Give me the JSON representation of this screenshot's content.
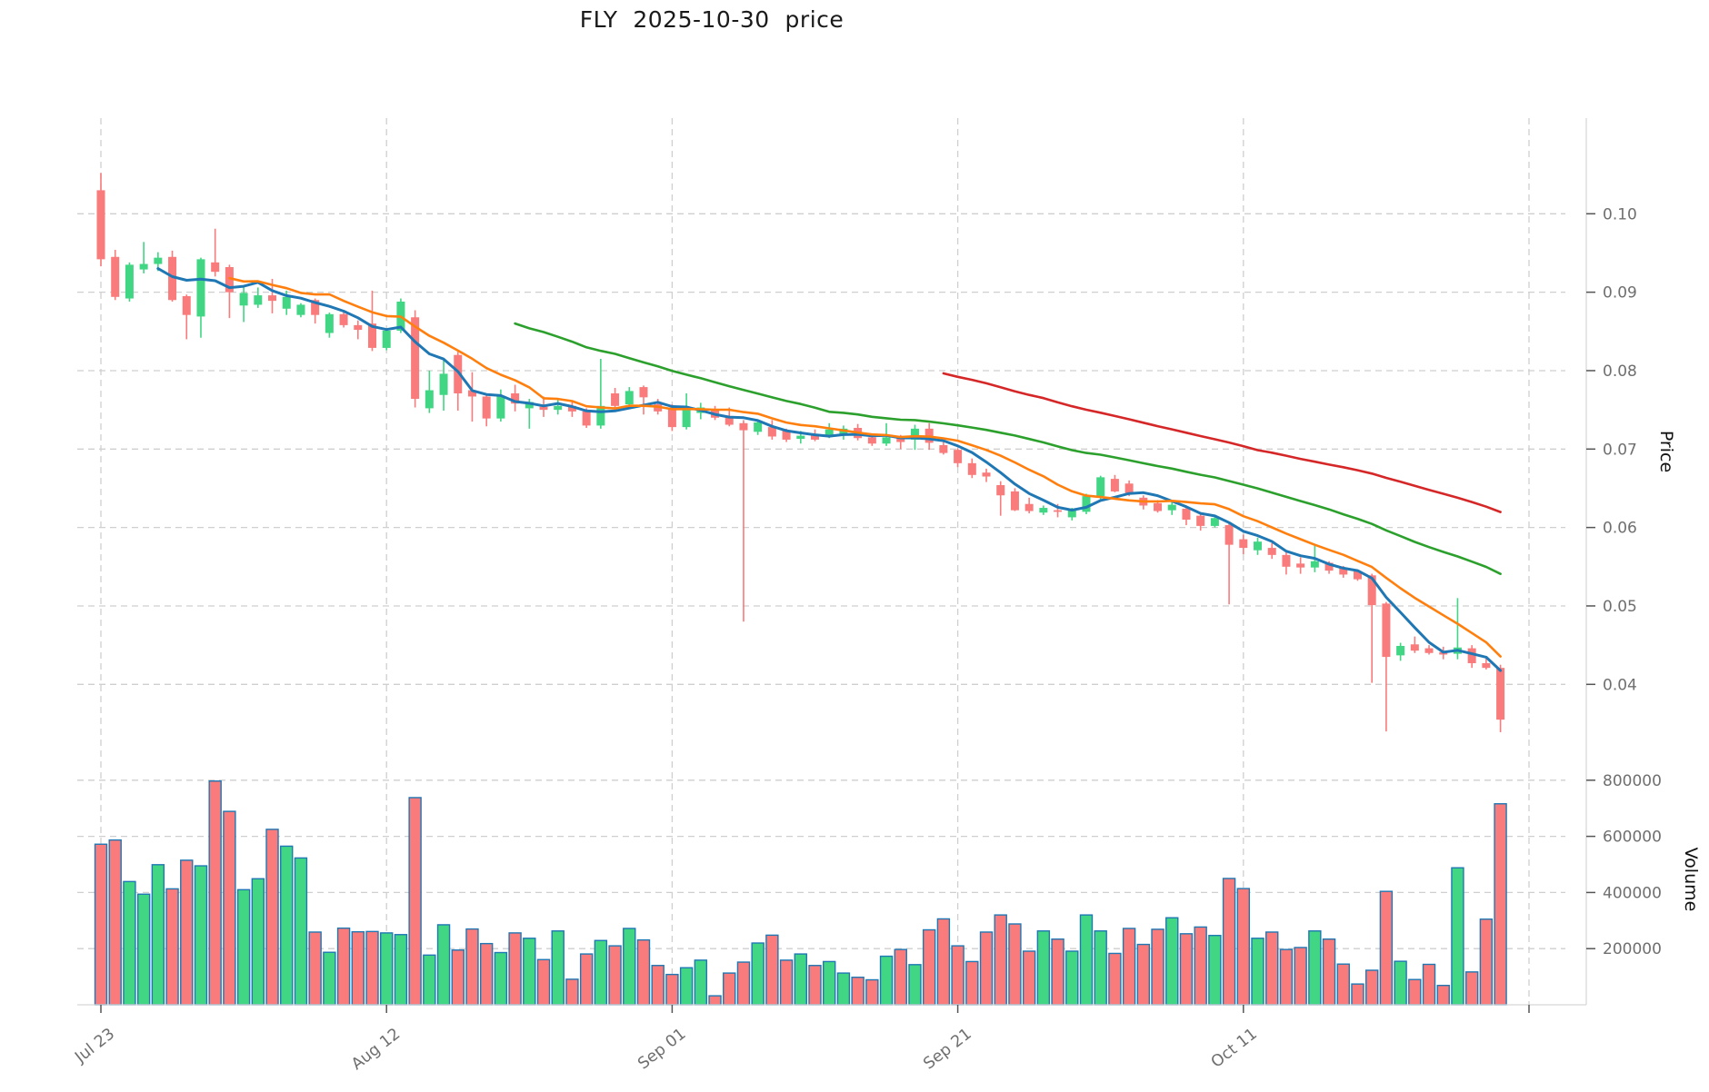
{
  "title": "FLY  2025-10-30  price",
  "axes": {
    "price_axis_label": "Price",
    "volume_axis_label": "Volume",
    "price_ticks": [
      {
        "value": 0.1,
        "label": "0.10"
      },
      {
        "value": 0.09,
        "label": "0.09"
      },
      {
        "value": 0.08,
        "label": "0.08"
      },
      {
        "value": 0.07,
        "label": "0.07"
      },
      {
        "value": 0.06,
        "label": "0.06"
      },
      {
        "value": 0.05,
        "label": "0.05"
      },
      {
        "value": 0.04,
        "label": "0.04"
      }
    ],
    "volume_ticks": [
      {
        "value": 800000,
        "label": "800000"
      },
      {
        "value": 600000,
        "label": "600000"
      },
      {
        "value": 400000,
        "label": "400000"
      },
      {
        "value": 200000,
        "label": "200000"
      }
    ],
    "x_ticks": [
      {
        "day": 0,
        "label": "Jul 23"
      },
      {
        "day": 20,
        "label": "Aug 12"
      },
      {
        "day": 40,
        "label": "Sep 01"
      },
      {
        "day": 60,
        "label": "Sep 21"
      },
      {
        "day": 80,
        "label": "Oct 11"
      },
      {
        "day": 100,
        "label": ""
      }
    ]
  },
  "chart_data": {
    "type": "candlestick+volume",
    "symbol": "FLY",
    "date_range": {
      "first_visible_tick": "Jul 23",
      "last_visible_tick": "Oct 11",
      "title_date": "2025-10-30"
    },
    "grid": true,
    "legend_position": "none",
    "price_ylim": [
      0.032,
      0.112
    ],
    "volume_ylim": [
      0,
      845000
    ],
    "open": [
      0.103,
      0.0945,
      0.0892,
      0.0929,
      0.0936,
      0.0945,
      0.0895,
      0.0869,
      0.0938,
      0.0932,
      0.0883,
      0.0884,
      0.0896,
      0.0879,
      0.0871,
      0.089,
      0.0848,
      0.0872,
      0.0858,
      0.086,
      0.0829,
      0.0851,
      0.0868,
      0.0752,
      0.0769,
      0.082,
      0.0775,
      0.0767,
      0.0739,
      0.0771,
      0.0752,
      0.0754,
      0.075,
      0.0755,
      0.0748,
      0.073,
      0.0771,
      0.0757,
      0.0779,
      0.0757,
      0.0753,
      0.0728,
      0.0746,
      0.0749,
      0.074,
      0.0733,
      0.0722,
      0.0728,
      0.0724,
      0.0713,
      0.0718,
      0.0717,
      0.0719,
      0.0727,
      0.0715,
      0.0707,
      0.0715,
      0.0712,
      0.0726,
      0.0705,
      0.0699,
      0.0682,
      0.067,
      0.0654,
      0.0646,
      0.063,
      0.0619,
      0.0622,
      0.0613,
      0.062,
      0.064,
      0.0662,
      0.0656,
      0.0638,
      0.0631,
      0.0622,
      0.0624,
      0.0615,
      0.0602,
      0.0603,
      0.0585,
      0.0571,
      0.0574,
      0.0565,
      0.0554,
      0.0549,
      0.0555,
      0.0549,
      0.0544,
      0.0539,
      0.0503,
      0.0437,
      0.0451,
      0.0446,
      0.0441,
      0.0439,
      0.0446,
      0.0427,
      0.0421
    ],
    "high": [
      0.1052,
      0.0954,
      0.0938,
      0.0964,
      0.0951,
      0.0953,
      0.0897,
      0.0944,
      0.0981,
      0.0935,
      0.0906,
      0.0906,
      0.0917,
      0.0902,
      0.0886,
      0.0892,
      0.0874,
      0.0876,
      0.0864,
      0.0902,
      0.0853,
      0.0892,
      0.0877,
      0.08,
      0.0815,
      0.0824,
      0.0798,
      0.077,
      0.0776,
      0.0782,
      0.0764,
      0.0767,
      0.0765,
      0.0762,
      0.0752,
      0.0815,
      0.0778,
      0.0779,
      0.0781,
      0.0764,
      0.0757,
      0.0771,
      0.0759,
      0.0755,
      0.0753,
      0.0737,
      0.0736,
      0.0737,
      0.0726,
      0.0723,
      0.0725,
      0.0733,
      0.073,
      0.0732,
      0.0718,
      0.0733,
      0.0718,
      0.0731,
      0.0733,
      0.0711,
      0.0701,
      0.0688,
      0.0675,
      0.0659,
      0.065,
      0.0638,
      0.0628,
      0.063,
      0.0625,
      0.0643,
      0.0666,
      0.0667,
      0.066,
      0.0641,
      0.0635,
      0.0634,
      0.0626,
      0.0617,
      0.0614,
      0.0606,
      0.0591,
      0.0587,
      0.058,
      0.0569,
      0.0562,
      0.0578,
      0.0557,
      0.0551,
      0.0546,
      0.0541,
      0.0505,
      0.0453,
      0.0461,
      0.045,
      0.0448,
      0.051,
      0.045,
      0.0433,
      0.0425
    ],
    "low": [
      0.0933,
      0.089,
      0.0888,
      0.0924,
      0.0927,
      0.0888,
      0.084,
      0.0842,
      0.092,
      0.0867,
      0.0862,
      0.088,
      0.0873,
      0.0871,
      0.0868,
      0.086,
      0.0842,
      0.0855,
      0.084,
      0.0825,
      0.0826,
      0.0848,
      0.0753,
      0.0746,
      0.0749,
      0.0749,
      0.0735,
      0.0729,
      0.0735,
      0.0748,
      0.0726,
      0.0741,
      0.0744,
      0.0741,
      0.0727,
      0.0726,
      0.0749,
      0.0752,
      0.0744,
      0.0744,
      0.0723,
      0.0725,
      0.0738,
      0.0737,
      0.0729,
      0.048,
      0.0718,
      0.0712,
      0.0709,
      0.0707,
      0.071,
      0.0714,
      0.0712,
      0.0711,
      0.0704,
      0.0704,
      0.07,
      0.0699,
      0.0699,
      0.0693,
      0.0677,
      0.0663,
      0.0658,
      0.0615,
      0.0621,
      0.0618,
      0.0616,
      0.0613,
      0.0609,
      0.0617,
      0.0636,
      0.0645,
      0.064,
      0.0623,
      0.0619,
      0.0616,
      0.0603,
      0.0596,
      0.06,
      0.0502,
      0.0566,
      0.0565,
      0.056,
      0.054,
      0.0541,
      0.0543,
      0.0541,
      0.0536,
      0.0532,
      0.0402,
      0.034,
      0.043,
      0.044,
      0.0438,
      0.0432,
      0.0432,
      0.0421,
      0.0419,
      0.0339
    ],
    "close": [
      0.0942,
      0.0894,
      0.0935,
      0.0936,
      0.0944,
      0.089,
      0.0871,
      0.0942,
      0.0926,
      0.09,
      0.0899,
      0.0896,
      0.0889,
      0.0894,
      0.0884,
      0.0871,
      0.0872,
      0.0858,
      0.0852,
      0.0829,
      0.0851,
      0.0888,
      0.0764,
      0.0775,
      0.0796,
      0.0771,
      0.0767,
      0.0739,
      0.0768,
      0.0758,
      0.076,
      0.075,
      0.0755,
      0.0748,
      0.073,
      0.0755,
      0.0755,
      0.0774,
      0.0766,
      0.0748,
      0.0728,
      0.0752,
      0.0753,
      0.074,
      0.0731,
      0.0724,
      0.0734,
      0.0716,
      0.0712,
      0.0717,
      0.0712,
      0.0725,
      0.0726,
      0.0714,
      0.0707,
      0.0715,
      0.0709,
      0.0726,
      0.0708,
      0.0695,
      0.0682,
      0.0667,
      0.0665,
      0.0641,
      0.0622,
      0.0621,
      0.0625,
      0.062,
      0.0623,
      0.064,
      0.0664,
      0.0646,
      0.0644,
      0.0628,
      0.0621,
      0.0629,
      0.061,
      0.0602,
      0.0612,
      0.0578,
      0.0574,
      0.0582,
      0.0565,
      0.055,
      0.0549,
      0.0557,
      0.0545,
      0.054,
      0.0534,
      0.0501,
      0.0435,
      0.0449,
      0.0443,
      0.044,
      0.0438,
      0.0447,
      0.0427,
      0.0421,
      0.0355
    ],
    "volume": [
      572000,
      587000,
      439000,
      394000,
      499000,
      413000,
      515000,
      495000,
      797000,
      689000,
      410000,
      449000,
      625000,
      565000,
      523000,
      259000,
      187000,
      273000,
      260000,
      261000,
      256000,
      250000,
      738000,
      177000,
      285000,
      195000,
      270000,
      218000,
      186000,
      256000,
      237000,
      161000,
      263000,
      91000,
      181000,
      229000,
      210000,
      272000,
      231000,
      140000,
      108000,
      132000,
      159000,
      32000,
      113000,
      152000,
      220000,
      248000,
      159000,
      181000,
      140000,
      154000,
      113000,
      98000,
      89000,
      173000,
      197000,
      143000,
      267000,
      306000,
      210000,
      154000,
      259000,
      320000,
      288000,
      191000,
      263000,
      234000,
      191000,
      320000,
      263000,
      183000,
      272000,
      215000,
      269000,
      310000,
      253000,
      277000,
      247000,
      450000,
      414000,
      237000,
      259000,
      197000,
      204000,
      263000,
      234000,
      145000,
      74000,
      123000,
      404000,
      155000,
      90000,
      144000,
      69000,
      488000,
      117000,
      305000,
      716000
    ],
    "moving_averages": [
      {
        "name": "MA5",
        "window": 5,
        "color": "#1f77b4",
        "width": 3.0
      },
      {
        "name": "MA10",
        "window": 10,
        "color": "#ff7f0e",
        "width": 2.6
      },
      {
        "name": "MA30",
        "window": 30,
        "color": "#2ca02c",
        "width": 2.6
      },
      {
        "name": "MA60",
        "window": 60,
        "color": "#d62728",
        "width": 2.6
      }
    ],
    "colors": {
      "up": "#40d683",
      "down": "#f97b7b",
      "volume_edge": "#1f77b4",
      "grid": "#cfcfcf",
      "tick_label": "#6f6f6f",
      "axis_spine": "#d8d8d8",
      "tick_mark": "#555555",
      "title": "#1a1a1a"
    }
  }
}
